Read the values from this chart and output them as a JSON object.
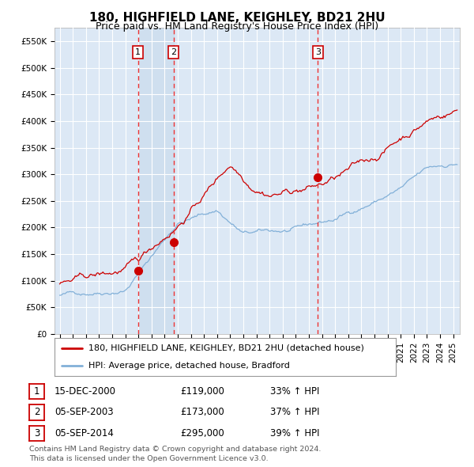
{
  "title": "180, HIGHFIELD LANE, KEIGHLEY, BD21 2HU",
  "subtitle": "Price paid vs. HM Land Registry's House Price Index (HPI)",
  "ylim": [
    0,
    575000
  ],
  "yticks": [
    0,
    50000,
    100000,
    150000,
    200000,
    250000,
    300000,
    350000,
    400000,
    450000,
    500000,
    550000
  ],
  "ytick_labels": [
    "£0",
    "£50K",
    "£100K",
    "£150K",
    "£200K",
    "£250K",
    "£300K",
    "£350K",
    "£400K",
    "£450K",
    "£500K",
    "£550K"
  ],
  "xmin": 1994.6,
  "xmax": 2025.5,
  "xticks": [
    1995,
    1996,
    1997,
    1998,
    1999,
    2000,
    2001,
    2002,
    2003,
    2004,
    2005,
    2006,
    2007,
    2008,
    2009,
    2010,
    2011,
    2012,
    2013,
    2014,
    2015,
    2016,
    2017,
    2018,
    2019,
    2020,
    2021,
    2022,
    2023,
    2024,
    2025
  ],
  "background_color": "#ffffff",
  "plot_bg_color": "#dce8f5",
  "grid_color": "#ffffff",
  "hpi_line_color": "#82b0d8",
  "price_line_color": "#cc0000",
  "sale_marker_color": "#cc0000",
  "vline_color": "#ee3333",
  "shade_color": "#c5d8eb",
  "title_fontsize": 11,
  "subtitle_fontsize": 9,
  "tick_fontsize": 7.5,
  "legend_fontsize": 8,
  "annotation_fontsize": 8.5,
  "sale1_x": 2000.96,
  "sale1_y": 119000,
  "sale1_label": "1",
  "sale1_date": "15-DEC-2000",
  "sale1_price": "£119,000",
  "sale1_hpi": "33% ↑ HPI",
  "sale2_x": 2003.67,
  "sale2_y": 173000,
  "sale2_label": "2",
  "sale2_date": "05-SEP-2003",
  "sale2_price": "£173,000",
  "sale2_hpi": "37% ↑ HPI",
  "sale3_x": 2014.67,
  "sale3_y": 295000,
  "sale3_label": "3",
  "sale3_date": "05-SEP-2014",
  "sale3_price": "£295,000",
  "sale3_hpi": "39% ↑ HPI",
  "legend_line1": "180, HIGHFIELD LANE, KEIGHLEY, BD21 2HU (detached house)",
  "legend_line2": "HPI: Average price, detached house, Bradford",
  "footnote1": "Contains HM Land Registry data © Crown copyright and database right 2024.",
  "footnote2": "This data is licensed under the Open Government Licence v3.0."
}
